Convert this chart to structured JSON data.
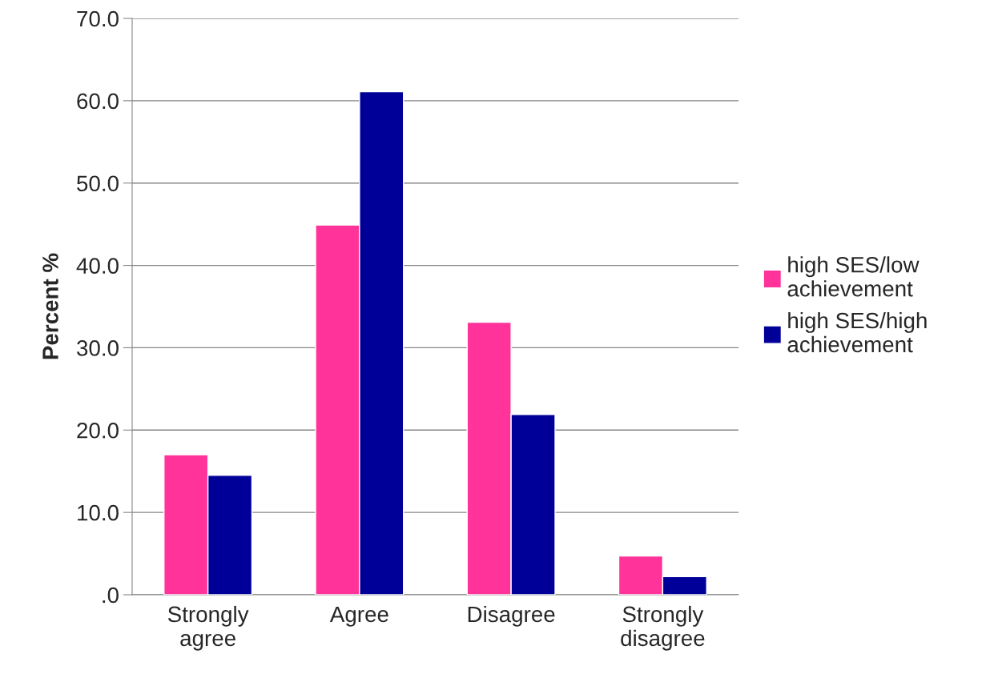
{
  "chart_data": {
    "type": "bar",
    "ylabel": "Percent %",
    "categories": [
      "Strongly\nagree",
      "Agree",
      "Disagree",
      "Strongly\ndisagree"
    ],
    "series": [
      {
        "name": "high SES/low\nachievement",
        "color": "#ff3399",
        "values": [
          17.0,
          44.9,
          33.1,
          4.7
        ]
      },
      {
        "name": "high SES/high\nachievement",
        "color": "#000099",
        "values": [
          14.5,
          61.1,
          21.9,
          2.2
        ]
      }
    ],
    "ylim": [
      0,
      70
    ],
    "yticks": [
      {
        "value": 0,
        "label": ".0"
      },
      {
        "value": 10,
        "label": "10.0"
      },
      {
        "value": 20,
        "label": "20.0"
      },
      {
        "value": 30,
        "label": "30.0"
      },
      {
        "value": 40,
        "label": "40.0"
      },
      {
        "value": 50,
        "label": "50.0"
      },
      {
        "value": 60,
        "label": "60.0"
      },
      {
        "value": 70,
        "label": "70.0"
      }
    ],
    "grid": "y",
    "legend": "right"
  }
}
